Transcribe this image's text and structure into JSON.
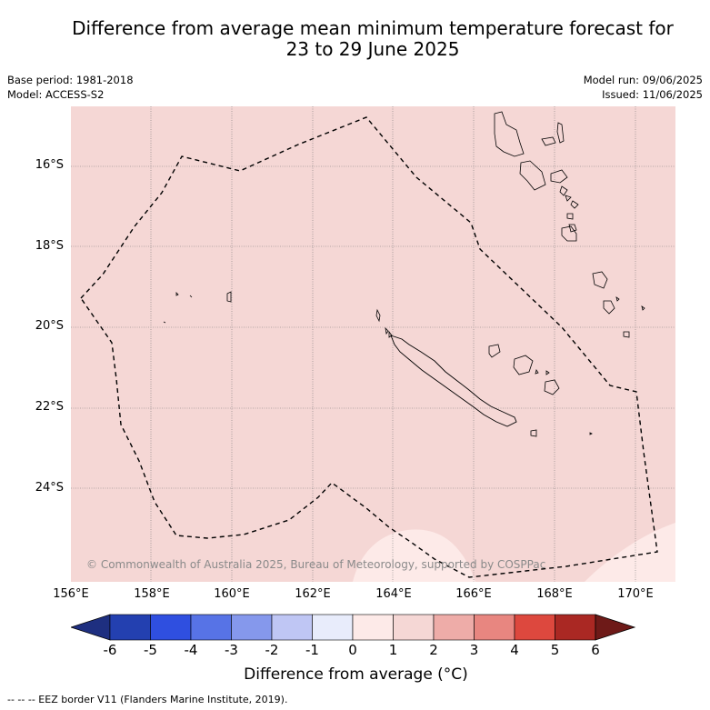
{
  "title_line1": "Difference from average mean minimum temperature forecast for",
  "title_line2": "23 to 29 June 2025",
  "base_period": "Base period: 1981-2018",
  "model": "Model: ACCESS-S2",
  "model_run": "Model run: 09/06/2025",
  "issued": "Issued: 11/06/2025",
  "lat_labels": [
    "16°S",
    "18°S",
    "20°S",
    "22°S",
    "24°S"
  ],
  "lon_labels": [
    "156°E",
    "158°E",
    "160°E",
    "162°E",
    "164°E",
    "166°E",
    "168°E",
    "170°E"
  ],
  "copyright": "© Commonwealth of Australia 2025, Bureau of Meteorology, supported by COSPPac",
  "colorbar": {
    "ticks": [
      "-6",
      "-5",
      "-4",
      "-3",
      "-2",
      "-1",
      "0",
      "1",
      "2",
      "3",
      "4",
      "5",
      "6"
    ],
    "colors": [
      "#1e2f80",
      "#2340b0",
      "#2f4fe0",
      "#5773e6",
      "#8598ec",
      "#bfc6f4",
      "#e8ecfb",
      "#fdeae8",
      "#f5d7d5",
      "#eeaca8",
      "#e88680",
      "#dd483e",
      "#aa2823",
      "#6e1a18"
    ],
    "title": "Difference from average (°C)"
  },
  "legend": "--  --  -- EEZ border V11 (Flanders Marine Institute, 2019)."
}
